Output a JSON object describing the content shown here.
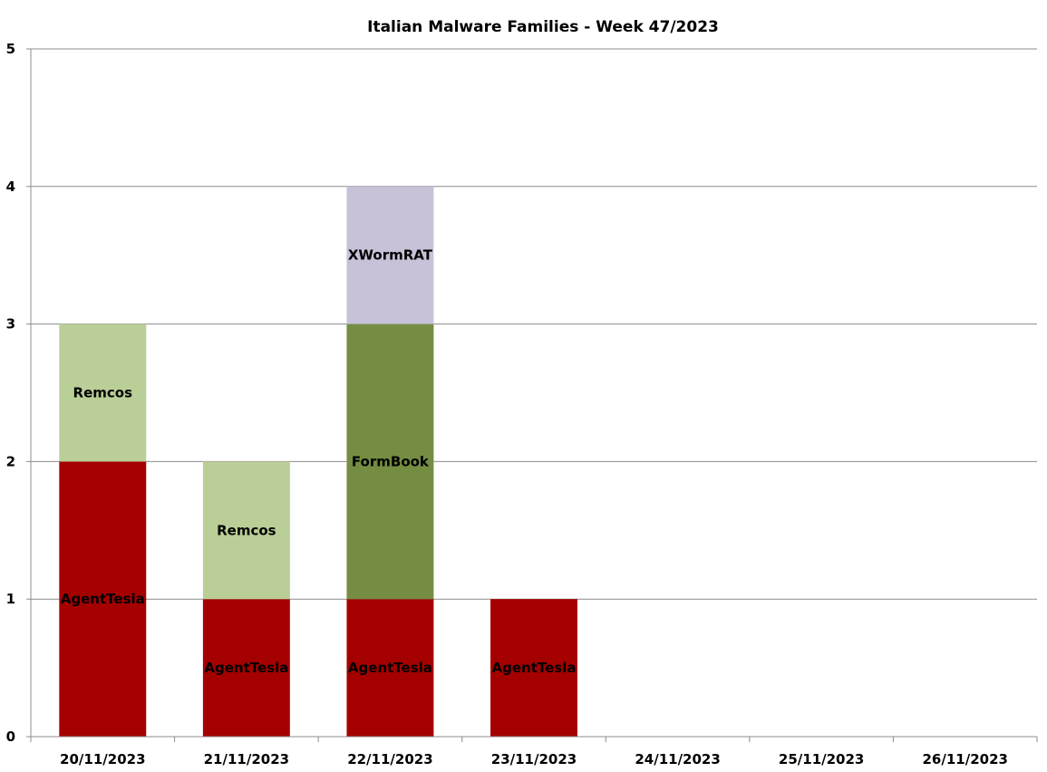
{
  "chart_data": {
    "type": "bar",
    "stacked": true,
    "title": "Italian Malware Families - Week 47/2023",
    "xlabel": "",
    "ylabel": "",
    "ylim": [
      0,
      5
    ],
    "yticks": [
      "0",
      "1",
      "2",
      "3",
      "4",
      "5"
    ],
    "grid": true,
    "legend": "none",
    "categories": [
      "20/11/2023",
      "21/11/2023",
      "22/11/2023",
      "23/11/2023",
      "24/11/2023",
      "25/11/2023",
      "26/11/2023"
    ],
    "stacks": [
      [
        {
          "label": "AgentTesla",
          "value": 2,
          "color": "#a50000"
        },
        {
          "label": "Remcos",
          "value": 1,
          "color": "#bace97"
        }
      ],
      [
        {
          "label": "AgentTesla",
          "value": 1,
          "color": "#a50000"
        },
        {
          "label": "Remcos",
          "value": 1,
          "color": "#bace97"
        }
      ],
      [
        {
          "label": "AgentTesla",
          "value": 1,
          "color": "#a50000"
        },
        {
          "label": "FormBook",
          "value": 2,
          "color": "#748d43"
        },
        {
          "label": "XWormRAT",
          "value": 1,
          "color": "#c8c1d7"
        }
      ],
      [
        {
          "label": "AgentTesla",
          "value": 1,
          "color": "#a50000"
        }
      ],
      [],
      [],
      []
    ]
  }
}
